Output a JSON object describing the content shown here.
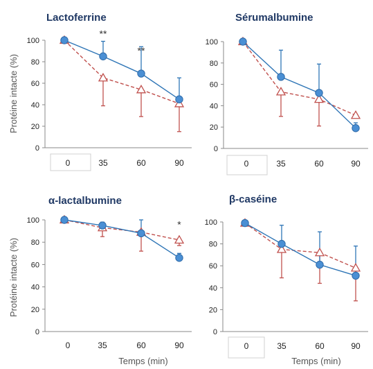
{
  "chart_data": [
    {
      "type": "line",
      "title": "Lactoferrine",
      "ylabel": "Protéine intacte (%)",
      "xlabel": "",
      "categories": [
        "0",
        "35",
        "60",
        "90"
      ],
      "ylim": [
        0,
        100
      ],
      "yticks": [
        0,
        20,
        40,
        60,
        80,
        100
      ],
      "series": [
        {
          "marker": "circle",
          "color": "#2e75b6",
          "line": "solid",
          "values": [
            100,
            85,
            69,
            45
          ],
          "error": [
            0,
            14,
            25,
            20
          ]
        },
        {
          "marker": "triangle",
          "color": "#c0504d",
          "line": "dashed",
          "values": [
            100,
            65,
            54,
            41
          ],
          "error": [
            0,
            26,
            25,
            26
          ]
        }
      ],
      "annotations": [
        {
          "category": "35",
          "y": 103,
          "text": "**"
        },
        {
          "category": "60",
          "y": 87,
          "text": "**"
        }
      ]
    },
    {
      "type": "line",
      "title": "Sérumalbumine",
      "ylabel": "",
      "xlabel": "",
      "categories": [
        "0",
        "35",
        "60",
        "90"
      ],
      "ylim": [
        0,
        100
      ],
      "yticks": [
        0,
        20,
        40,
        60,
        80,
        100
      ],
      "series": [
        {
          "marker": "circle",
          "color": "#2e75b6",
          "line": "solid",
          "values": [
            100,
            67,
            52,
            19
          ],
          "error": [
            0,
            25,
            27,
            5
          ]
        },
        {
          "marker": "triangle",
          "color": "#c0504d",
          "line": "dashed",
          "values": [
            100,
            53,
            46,
            31
          ],
          "error": [
            0,
            23,
            25,
            0
          ]
        }
      ],
      "annotations": []
    },
    {
      "type": "line",
      "title": "α-lactalbumine",
      "ylabel": "Protéine intacte (%)",
      "xlabel": "Temps (min)",
      "categories": [
        "0",
        "35",
        "60",
        "90"
      ],
      "ylim": [
        0,
        100
      ],
      "yticks": [
        0,
        20,
        40,
        60,
        80,
        100
      ],
      "series": [
        {
          "marker": "circle",
          "color": "#2e75b6",
          "line": "solid",
          "values": [
            100,
            95,
            88,
            66
          ],
          "error": [
            0,
            3,
            12,
            4
          ]
        },
        {
          "marker": "triangle",
          "color": "#c0504d",
          "line": "dashed",
          "values": [
            100,
            93,
            89,
            82
          ],
          "error": [
            0,
            8,
            17,
            5
          ]
        }
      ],
      "annotations": [
        {
          "category": "90",
          "y": 93,
          "text": "*"
        }
      ]
    },
    {
      "type": "line",
      "title": "β-caséine",
      "ylabel": "",
      "xlabel": "Temps (min)",
      "categories": [
        "0",
        "35",
        "60",
        "90"
      ],
      "ylim": [
        0,
        100
      ],
      "yticks": [
        0,
        20,
        40,
        60,
        80,
        100
      ],
      "series": [
        {
          "marker": "circle",
          "color": "#2e75b6",
          "line": "solid",
          "values": [
            99,
            80,
            61,
            51
          ],
          "error": [
            0,
            17,
            30,
            27
          ]
        },
        {
          "marker": "triangle",
          "color": "#c0504d",
          "line": "dashed",
          "values": [
            99,
            75,
            72,
            58
          ],
          "error": [
            0,
            26,
            28,
            30
          ]
        }
      ],
      "annotations": []
    }
  ]
}
